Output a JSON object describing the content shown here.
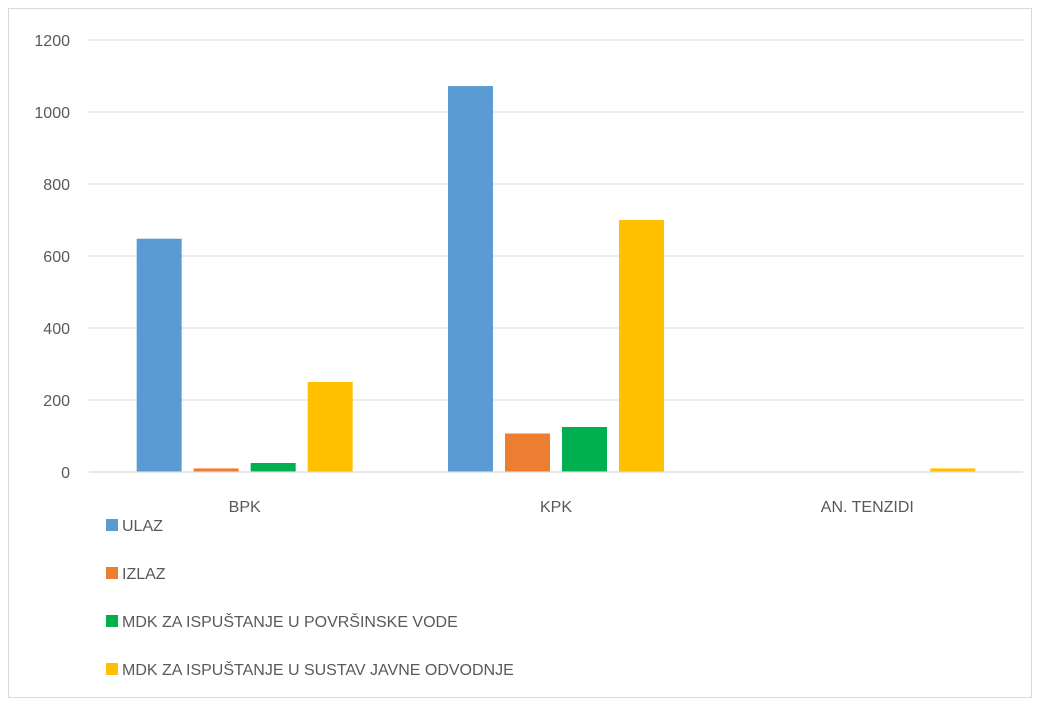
{
  "chart_data": {
    "type": "bar",
    "categories": [
      "BPK",
      "KPK",
      "AN. TENZIDI"
    ],
    "series": [
      {
        "name": "ULAZ",
        "color": "#5b9bd5",
        "values": [
          648,
          1072,
          0
        ]
      },
      {
        "name": "IZLAZ",
        "color": "#ed7d31",
        "values": [
          10,
          107,
          0
        ]
      },
      {
        "name": "MDK ZA ISPUŠTANJE U POVRŠINSKE VODE",
        "color": "#00b050",
        "values": [
          25,
          125,
          0
        ]
      },
      {
        "name": "MDK ZA ISPUŠTANJE U SUSTAV JAVNE ODVODNJE",
        "color": "#ffc000",
        "values": [
          250,
          700,
          10
        ]
      }
    ],
    "ylim": [
      0,
      1200
    ],
    "yticks": [
      0,
      200,
      400,
      600,
      800,
      1000,
      1200
    ],
    "ytick_labels": [
      "0",
      "200",
      "400",
      "600",
      "800",
      "1000",
      "1200"
    ],
    "grid": true,
    "legend_position": "bottom-left",
    "title": "",
    "xlabel": "",
    "ylabel": ""
  }
}
